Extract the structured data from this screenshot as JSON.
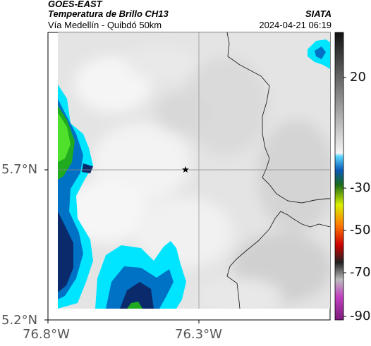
{
  "header": {
    "satellite": "GOES-EAST",
    "product": "Temperatura de Brillo CH13",
    "route": "Vía Medellín - Quibdó 50km",
    "agency": "SIATA",
    "datetime": "2024-04-21 06:19"
  },
  "axes": {
    "y_ticks": [
      "5.7°N",
      "5.2°N"
    ],
    "x_ticks": [
      "76.8°W",
      "76.3°W"
    ]
  },
  "marker": {
    "symbol": "★"
  },
  "colorbar": {
    "ticks": [
      "20",
      "-30",
      "-50",
      "-70",
      "-90"
    ]
  },
  "colors": {
    "background_cloud": "#e6e6e6",
    "cyan": "#00e5ff",
    "blue": "#0072c6",
    "dark_blue": "#0b2a6b",
    "green": "#1faa1f",
    "bright_green": "#4ee02a",
    "border_line": "#222222"
  }
}
